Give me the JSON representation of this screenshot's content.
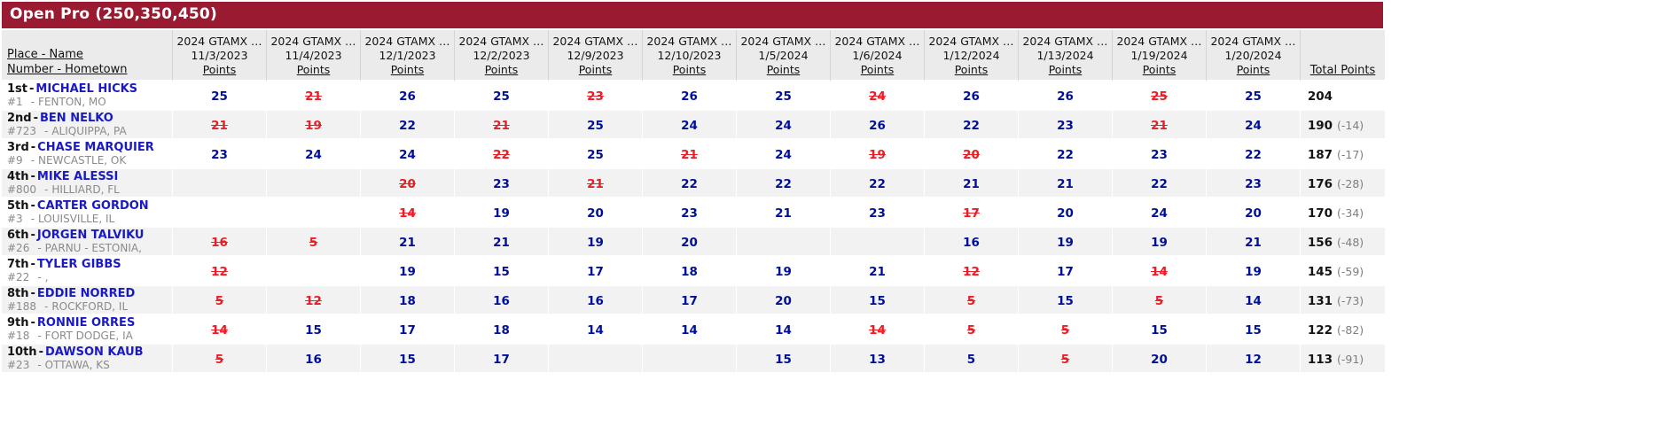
{
  "title": "Open Pro (250,350,450)",
  "labels": {
    "dash": "-"
  },
  "header": {
    "place_line1": "Place - Name",
    "place_line2": "Number - Hometown",
    "race_title": "2024 GTAMX …",
    "points_label": "Points",
    "total_label": "Total Points",
    "race_dates": [
      "11/3/2023",
      "11/4/2023",
      "12/1/2023",
      "12/2/2023",
      "12/9/2023",
      "12/10/2023",
      "1/5/2024",
      "1/6/2024",
      "1/12/2024",
      "1/13/2024",
      "1/19/2024",
      "1/20/2024"
    ]
  },
  "colors": {
    "bar": "#9a1b31",
    "header_bg": "#ebebeb",
    "stripe": "#f2f2f2",
    "name_blue": "#1a1ac4",
    "points_navy": "#000f99",
    "drop_red": "#ec1c24",
    "muted": "#8a8a8a"
  },
  "riders": [
    {
      "place": "1st",
      "name": "MICHAEL HICKS",
      "number": "#1",
      "hometown": "FENTON, MO",
      "points": [
        {
          "v": "25"
        },
        {
          "v": "21",
          "dropped": true
        },
        {
          "v": "26"
        },
        {
          "v": "25"
        },
        {
          "v": "23",
          "dropped": true
        },
        {
          "v": "26"
        },
        {
          "v": "25"
        },
        {
          "v": "24",
          "dropped": true
        },
        {
          "v": "26"
        },
        {
          "v": "26"
        },
        {
          "v": "25",
          "dropped": true
        },
        {
          "v": "25"
        }
      ],
      "total": "204",
      "behind": ""
    },
    {
      "place": "2nd",
      "name": "BEN NELKO",
      "number": "#723",
      "hometown": "ALIQUIPPA, PA",
      "points": [
        {
          "v": "21",
          "dropped": true
        },
        {
          "v": "19",
          "dropped": true
        },
        {
          "v": "22"
        },
        {
          "v": "21",
          "dropped": true
        },
        {
          "v": "25"
        },
        {
          "v": "24"
        },
        {
          "v": "24"
        },
        {
          "v": "26"
        },
        {
          "v": "22"
        },
        {
          "v": "23"
        },
        {
          "v": "21",
          "dropped": true
        },
        {
          "v": "24"
        }
      ],
      "total": "190",
      "behind": "(-14)"
    },
    {
      "place": "3rd",
      "name": "CHASE MARQUIER",
      "number": "#9",
      "hometown": "NEWCASTLE, OK",
      "points": [
        {
          "v": "23"
        },
        {
          "v": "24"
        },
        {
          "v": "24"
        },
        {
          "v": "22",
          "dropped": true
        },
        {
          "v": "25"
        },
        {
          "v": "21",
          "dropped": true
        },
        {
          "v": "24"
        },
        {
          "v": "19",
          "dropped": true
        },
        {
          "v": "20",
          "dropped": true
        },
        {
          "v": "22"
        },
        {
          "v": "23"
        },
        {
          "v": "22"
        }
      ],
      "total": "187",
      "behind": "(-17)"
    },
    {
      "place": "4th",
      "name": "MIKE ALESSI",
      "number": "#800",
      "hometown": "HILLIARD, FL",
      "points": [
        null,
        null,
        {
          "v": "20",
          "dropped": true
        },
        {
          "v": "23"
        },
        {
          "v": "21",
          "dropped": true
        },
        {
          "v": "22"
        },
        {
          "v": "22"
        },
        {
          "v": "22"
        },
        {
          "v": "21"
        },
        {
          "v": "21"
        },
        {
          "v": "22"
        },
        {
          "v": "23"
        }
      ],
      "total": "176",
      "behind": "(-28)"
    },
    {
      "place": "5th",
      "name": "CARTER GORDON",
      "number": "#3",
      "hometown": "LOUISVILLE, IL",
      "points": [
        null,
        null,
        {
          "v": "14",
          "dropped": true
        },
        {
          "v": "19"
        },
        {
          "v": "20"
        },
        {
          "v": "23"
        },
        {
          "v": "21"
        },
        {
          "v": "23"
        },
        {
          "v": "17",
          "dropped": true
        },
        {
          "v": "20"
        },
        {
          "v": "24"
        },
        {
          "v": "20"
        }
      ],
      "total": "170",
      "behind": "(-34)"
    },
    {
      "place": "6th",
      "name": "JORGEN TALVIKU",
      "number": "#26",
      "hometown": "PARNU - ESTONIA,",
      "points": [
        {
          "v": "16",
          "dropped": true
        },
        {
          "v": "5",
          "dropped": true
        },
        {
          "v": "21"
        },
        {
          "v": "21"
        },
        {
          "v": "19"
        },
        {
          "v": "20"
        },
        null,
        null,
        {
          "v": "16"
        },
        {
          "v": "19"
        },
        {
          "v": "19"
        },
        {
          "v": "21"
        }
      ],
      "total": "156",
      "behind": "(-48)"
    },
    {
      "place": "7th",
      "name": "TYLER GIBBS",
      "number": "#22",
      "hometown": ",",
      "points": [
        {
          "v": "12",
          "dropped": true
        },
        null,
        {
          "v": "19"
        },
        {
          "v": "15"
        },
        {
          "v": "17"
        },
        {
          "v": "18"
        },
        {
          "v": "19"
        },
        {
          "v": "21"
        },
        {
          "v": "12",
          "dropped": true
        },
        {
          "v": "17"
        },
        {
          "v": "14",
          "dropped": true
        },
        {
          "v": "19"
        }
      ],
      "total": "145",
      "behind": "(-59)"
    },
    {
      "place": "8th",
      "name": "EDDIE NORRED",
      "number": "#188",
      "hometown": "ROCKFORD, IL",
      "points": [
        {
          "v": "5",
          "dropped": true
        },
        {
          "v": "12",
          "dropped": true
        },
        {
          "v": "18"
        },
        {
          "v": "16"
        },
        {
          "v": "16"
        },
        {
          "v": "17"
        },
        {
          "v": "20"
        },
        {
          "v": "15"
        },
        {
          "v": "5",
          "dropped": true
        },
        {
          "v": "15"
        },
        {
          "v": "5",
          "dropped": true
        },
        {
          "v": "14"
        }
      ],
      "total": "131",
      "behind": "(-73)"
    },
    {
      "place": "9th",
      "name": "RONNIE ORRES",
      "number": "#18",
      "hometown": "FORT DODGE, IA",
      "points": [
        {
          "v": "14",
          "dropped": true
        },
        {
          "v": "15"
        },
        {
          "v": "17"
        },
        {
          "v": "18"
        },
        {
          "v": "14"
        },
        {
          "v": "14"
        },
        {
          "v": "14"
        },
        {
          "v": "14",
          "dropped": true
        },
        {
          "v": "5",
          "dropped": true
        },
        {
          "v": "5",
          "dropped": true
        },
        {
          "v": "15"
        },
        {
          "v": "15"
        }
      ],
      "total": "122",
      "behind": "(-82)"
    },
    {
      "place": "10th",
      "name": "DAWSON KAUB",
      "number": "#23",
      "hometown": "OTTAWA, KS",
      "points": [
        {
          "v": "5",
          "dropped": true
        },
        {
          "v": "16"
        },
        {
          "v": "15"
        },
        {
          "v": "17"
        },
        null,
        null,
        {
          "v": "15"
        },
        {
          "v": "13"
        },
        {
          "v": "5"
        },
        {
          "v": "5",
          "dropped": true
        },
        {
          "v": "20"
        },
        {
          "v": "12"
        }
      ],
      "total": "113",
      "behind": "(-91)"
    }
  ]
}
